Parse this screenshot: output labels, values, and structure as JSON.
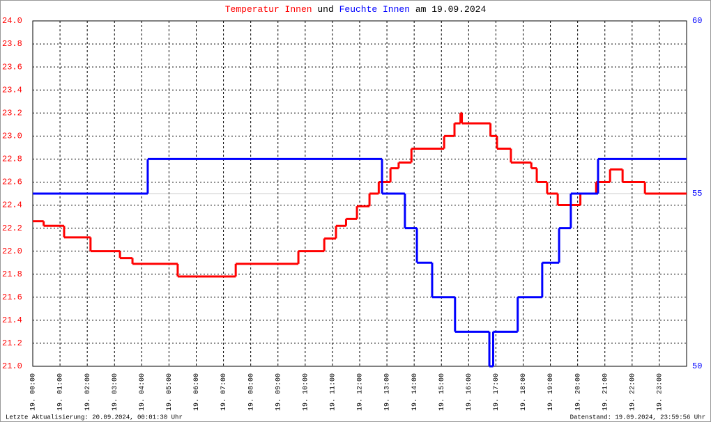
{
  "chart_data": {
    "type": "step",
    "title_parts": [
      {
        "text": "Temperatur Innen",
        "color": "#ff0000"
      },
      {
        "text": "und",
        "color": "#000000"
      },
      {
        "text": "Feuchte Innen",
        "color": "#0000ff"
      },
      {
        "text": "am 19.09.2024",
        "color": "#000000"
      }
    ],
    "xlim": [
      0,
      24
    ],
    "xticks": [
      {
        "value": 0,
        "label": "19. 00:00"
      },
      {
        "value": 1,
        "label": "19. 01:00"
      },
      {
        "value": 2,
        "label": "19. 02:00"
      },
      {
        "value": 3,
        "label": "19. 03:00"
      },
      {
        "value": 4,
        "label": "19. 04:00"
      },
      {
        "value": 5,
        "label": "19. 05:00"
      },
      {
        "value": 6,
        "label": "19. 06:00"
      },
      {
        "value": 7,
        "label": "19. 07:00"
      },
      {
        "value": 8,
        "label": "19. 08:00"
      },
      {
        "value": 9,
        "label": "19. 09:00"
      },
      {
        "value": 10,
        "label": "19. 10:00"
      },
      {
        "value": 11,
        "label": "19. 11:00"
      },
      {
        "value": 12,
        "label": "19. 12:00"
      },
      {
        "value": 13,
        "label": "19. 13:00"
      },
      {
        "value": 14,
        "label": "19. 14:00"
      },
      {
        "value": 15,
        "label": "19. 15:00"
      },
      {
        "value": 16,
        "label": "19. 16:00"
      },
      {
        "value": 17,
        "label": "19. 17:00"
      },
      {
        "value": 18,
        "label": "19. 18:00"
      },
      {
        "value": 19,
        "label": "19. 19:00"
      },
      {
        "value": 20,
        "label": "19. 20:00"
      },
      {
        "value": 21,
        "label": "19. 21:00"
      },
      {
        "value": 22,
        "label": "19. 22:00"
      },
      {
        "value": 23,
        "label": "19. 23:00"
      }
    ],
    "ylim": [
      21,
      24
    ],
    "yticks": [
      {
        "value": 21,
        "label": "21.0"
      },
      21.2,
      21.4,
      21.6,
      21.8,
      {
        "value": 22,
        "label": "22.0"
      },
      22.2,
      22.4,
      22.6,
      22.8,
      {
        "value": 23,
        "label": "23.0"
      },
      23.2,
      23.4,
      23.6,
      23.8,
      {
        "value": 24,
        "label": "24.0"
      }
    ],
    "y2lim": [
      50,
      60
    ],
    "y2ticks": [
      50,
      55,
      60
    ],
    "grid": true,
    "series": [
      {
        "name": "Temperatur Innen",
        "color": "#ff0000",
        "x": [
          0,
          0.4,
          1.15,
          2.12,
          3.2,
          3.66,
          5.32,
          7.45,
          9.75,
          10.7,
          11.13,
          11.5,
          11.9,
          12.36,
          12.7,
          13.13,
          13.43,
          13.9,
          15.1,
          15.48,
          15.7,
          15.75,
          16.8,
          17.04,
          17.55,
          18.3,
          18.5,
          18.88,
          19.27,
          20.1,
          20.68,
          21.19,
          21.65,
          22.47,
          24
        ],
        "values": [
          22.26,
          22.22,
          22.12,
          22.0,
          21.94,
          21.89,
          21.78,
          21.89,
          22.0,
          22.11,
          22.22,
          22.28,
          22.39,
          22.5,
          22.6,
          22.72,
          22.77,
          22.89,
          23.0,
          23.11,
          23.2,
          23.11,
          23.0,
          22.89,
          22.77,
          22.72,
          22.6,
          22.5,
          22.4,
          22.5,
          22.6,
          22.71,
          22.6,
          22.5,
          22.5
        ]
      },
      {
        "name": "Feuchte Innen",
        "color": "#0000ff",
        "axis": "y2",
        "x": [
          0,
          4.22,
          12.82,
          13.66,
          14.1,
          14.66,
          15.5,
          16.76,
          16.9,
          17.8,
          18.7,
          19.32,
          19.75,
          20.75,
          24
        ],
        "values": [
          55,
          56,
          55,
          54,
          53,
          52,
          51,
          50,
          51,
          52,
          53,
          54,
          55,
          56,
          56
        ]
      }
    ],
    "footer_left": "Letzte Aktualisierung: 20.09.2024, 00:01:30 Uhr",
    "footer_right": "Datenstand: 19.09.2024, 23:59:56 Uhr"
  }
}
